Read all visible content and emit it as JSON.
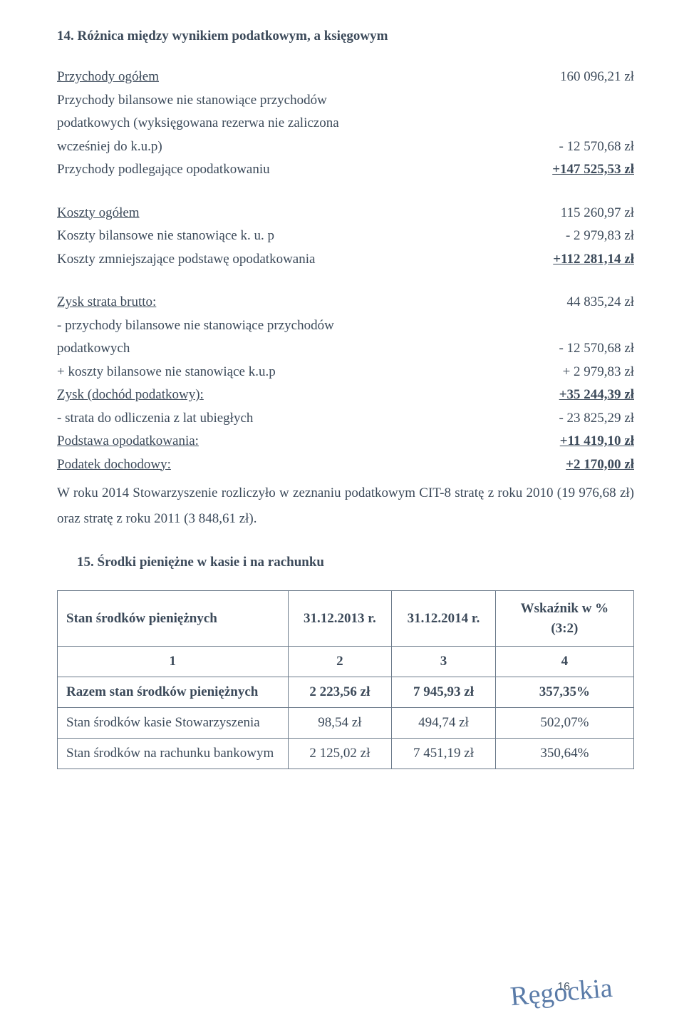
{
  "section14": {
    "title": "14. Różnica między wynikiem podatkowym, a księgowym",
    "block1": {
      "row1_label": "Przychody ogółem",
      "row1_value": "160 096,21 zł",
      "row2_label": "Przychody bilansowe nie stanowiące przychodów",
      "row3_label": "podatkowych (wyksięgowana rezerwa nie zaliczona",
      "row4_label": "wcześniej do k.u.p)",
      "row4_value": "- 12 570,68 zł",
      "row5_label": "Przychody podlegające opodatkowaniu",
      "row5_value": "+147 525,53 zł"
    },
    "block2": {
      "row1_label": "Koszty ogółem",
      "row1_value": "115 260,97 zł",
      "row2_label": "Koszty bilansowe nie stanowiące k. u. p",
      "row2_value": "- 2 979,83 zł",
      "row3_label": "Koszty zmniejszające podstawę opodatkowania",
      "row3_value": "+112 281,14 zł"
    },
    "block3": {
      "row1_label": "Zysk strata brutto:",
      "row1_value": "44 835,24 zł",
      "row2_label": "- przychody bilansowe nie stanowiące przychodów",
      "row3_label": "podatkowych",
      "row3_value": "- 12 570,68 zł",
      "row4_label": "+ koszty bilansowe nie stanowiące k.u.p",
      "row4_value": "+ 2 979,83 zł",
      "row5_label": "Zysk (dochód podatkowy):",
      "row5_value": "+35 244,39 zł",
      "row6_label": "- strata do odliczenia z lat ubiegłych",
      "row6_value": "- 23 825,29 zł",
      "row7_label": "Podstawa opodatkowania:",
      "row7_value": "+11 419,10 zł",
      "row8_label": "Podatek dochodowy:",
      "row8_value": "+2 170,00 zł"
    },
    "paragraph": "W roku 2014 Stowarzyszenie rozliczyło w zeznaniu podatkowym CIT-8 stratę z roku 2010 (19 976,68 zł) oraz stratę z roku 2011 (3 848,61 zł)."
  },
  "section15": {
    "title": "15. Środki pieniężne w kasie i na rachunku",
    "table": {
      "headers": {
        "col1": "Stan środków pieniężnych",
        "col2": "31.12.2013 r.",
        "col3": "31.12.2014 r.",
        "col4_line1": "Wskaźnik w %",
        "col4_line2": "(3:2)"
      },
      "numrow": {
        "c1": "1",
        "c2": "2",
        "c3": "3",
        "c4": "4"
      },
      "rows": [
        {
          "label": "Razem stan środków pieniężnych",
          "c2": "2 223,56 zł",
          "c3": "7 945,93 zł",
          "c4": "357,35%",
          "bold": true
        },
        {
          "label": "Stan środków kasie Stowarzyszenia",
          "c2": "98,54 zł",
          "c3": "494,74 zł",
          "c4": "502,07%",
          "bold": false
        },
        {
          "label": "Stan środków na rachunku bankowym",
          "c2": "2 125,02 zł",
          "c3": "7 451,19 zł",
          "c4": "350,64%",
          "bold": false
        }
      ]
    }
  },
  "page_number": "16",
  "signature": "Ręgockia"
}
